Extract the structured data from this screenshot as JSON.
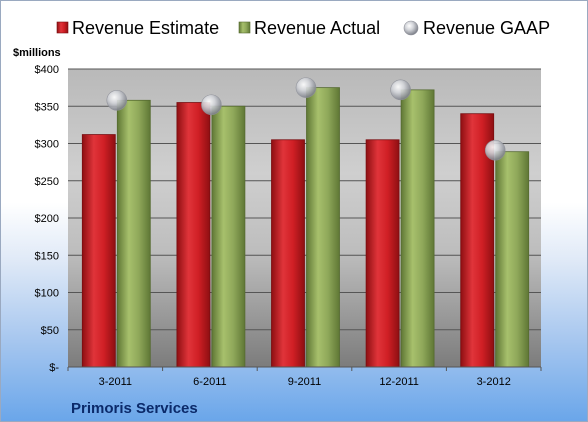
{
  "chart_data": {
    "type": "bar",
    "categories": [
      "3-2011",
      "6-2011",
      "9-2011",
      "12-2011",
      "3-2012"
    ],
    "series": [
      {
        "name": "Revenue Estimate",
        "kind": "bar",
        "color": "#c8191e",
        "values": [
          312,
          355,
          305,
          305,
          340
        ]
      },
      {
        "name": "Revenue Actual",
        "kind": "bar",
        "color": "#8ca553",
        "values": [
          358,
          350,
          375,
          372,
          289
        ]
      },
      {
        "name": "Revenue GAAP",
        "kind": "marker",
        "color": "#b9bcc4",
        "values": [
          358,
          352,
          375,
          372,
          291
        ]
      }
    ],
    "ylabel": "$millions",
    "ylim": [
      0,
      400
    ],
    "yticks": [
      0,
      50,
      100,
      150,
      200,
      250,
      300,
      350,
      400
    ],
    "ytick_labels": [
      "$-",
      "$50",
      "$100",
      "$150",
      "$200",
      "$250",
      "$300",
      "$350",
      "$400"
    ],
    "grid": true,
    "legend_position": "top",
    "company": "Primoris Services"
  }
}
